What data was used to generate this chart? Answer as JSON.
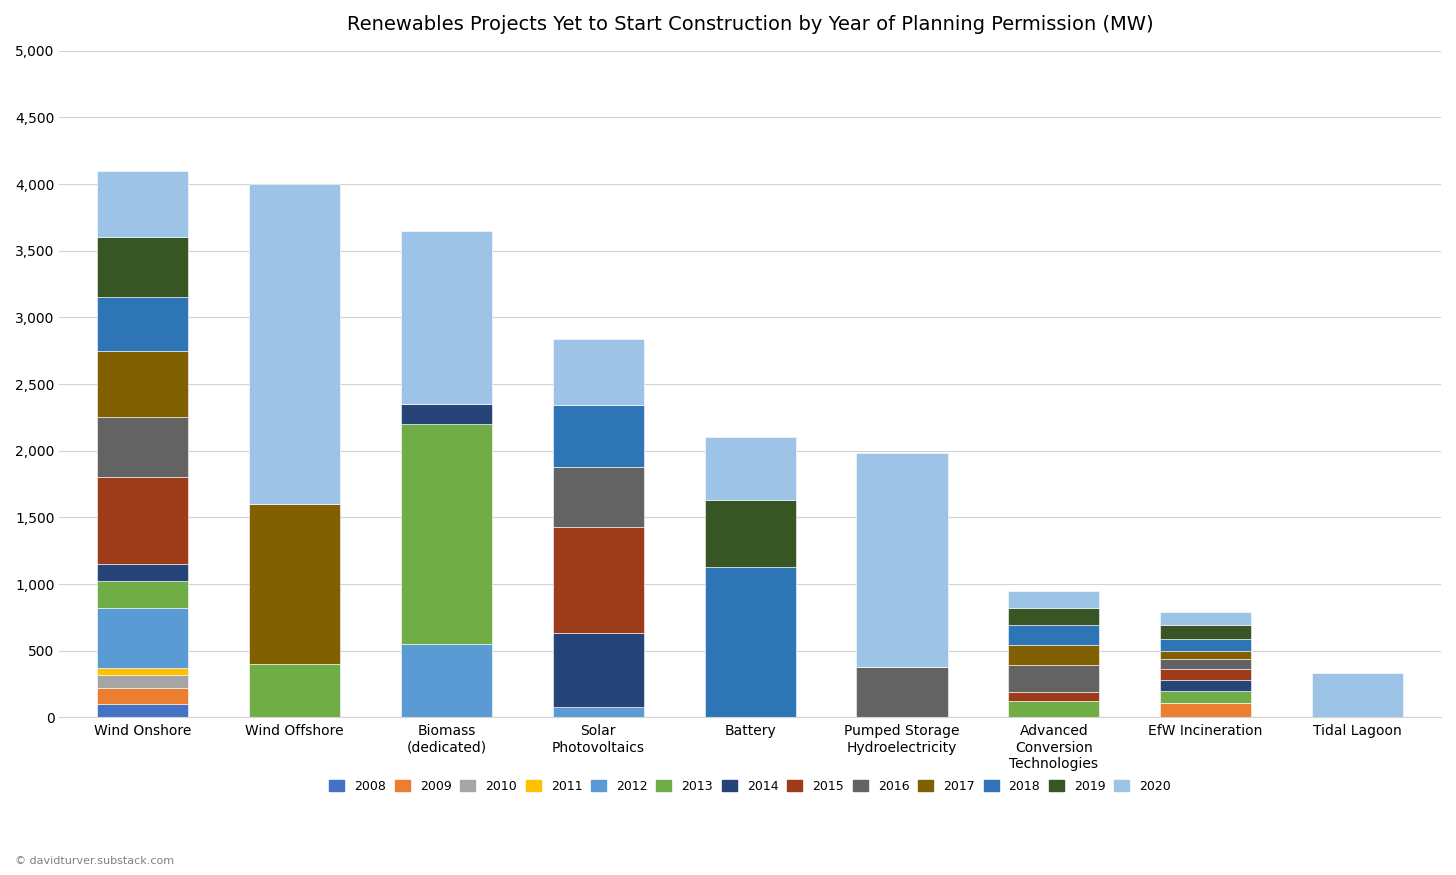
{
  "title": "Renewables Projects Yet to Start Construction by Year of Planning Permission (MW)",
  "categories": [
    "Wind Onshore",
    "Wind Offshore",
    "Biomass\n(dedicated)",
    "Solar\nPhotovoltaics",
    "Battery",
    "Pumped Storage\nHydroelectricity",
    "Advanced\nConversion\nTechnologies",
    "EfW Incineration",
    "Tidal Lagoon"
  ],
  "years": [
    "2008",
    "2009",
    "2010",
    "2011",
    "2012",
    "2013",
    "2014",
    "2015",
    "2016",
    "2017",
    "2018",
    "2019",
    "2020"
  ],
  "colors": [
    "#4472C4",
    "#ED7D31",
    "#A5A5A5",
    "#FFC000",
    "#5B9BD5",
    "#70AD47",
    "#264478",
    "#9E3B1B",
    "#636363",
    "#806000",
    "#2E75B6",
    "#375623",
    "#9DC3E6"
  ],
  "data": {
    "2008": [
      100,
      0,
      0,
      0,
      0,
      0,
      0,
      0,
      0
    ],
    "2009": [
      120,
      0,
      0,
      0,
      0,
      0,
      0,
      110,
      0
    ],
    "2010": [
      100,
      0,
      0,
      0,
      0,
      0,
      0,
      0,
      0
    ],
    "2011": [
      50,
      0,
      0,
      0,
      0,
      0,
      0,
      0,
      0
    ],
    "2012": [
      450,
      0,
      550,
      80,
      0,
      0,
      0,
      0,
      0
    ],
    "2013": [
      200,
      400,
      1650,
      0,
      0,
      0,
      120,
      90,
      0
    ],
    "2014": [
      130,
      0,
      150,
      550,
      0,
      0,
      0,
      80,
      0
    ],
    "2015": [
      650,
      0,
      0,
      800,
      0,
      0,
      70,
      80,
      0
    ],
    "2016": [
      450,
      0,
      0,
      450,
      0,
      380,
      200,
      80,
      0
    ],
    "2017": [
      500,
      1200,
      0,
      0,
      0,
      0,
      150,
      60,
      0
    ],
    "2018": [
      400,
      0,
      0,
      460,
      1130,
      0,
      150,
      90,
      0
    ],
    "2019": [
      450,
      0,
      0,
      0,
      500,
      0,
      130,
      100,
      0
    ],
    "2020": [
      500,
      2400,
      1300,
      500,
      470,
      1600,
      130,
      100,
      330
    ]
  },
  "footer": "© davidturver.substack.com",
  "ylim": [
    0,
    5000
  ],
  "yticks": [
    0,
    500,
    1000,
    1500,
    2000,
    2500,
    3000,
    3500,
    4000,
    4500,
    5000
  ]
}
